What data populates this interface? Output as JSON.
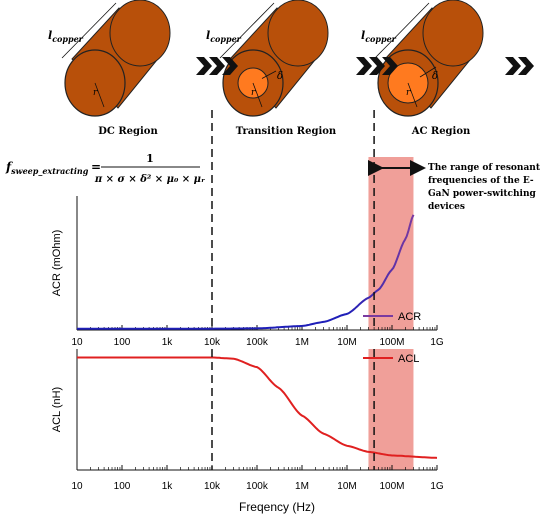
{
  "colors": {
    "copper": "#b8500a",
    "copper_dark": "#7a3306",
    "core_orange": "#ff7a1f",
    "band": "#ef9a93",
    "acr_blue": "#1f1fb8",
    "acr_purple": "#7a3aa0",
    "acl_red": "#e02020",
    "arrow_black": "#111111"
  },
  "regions": [
    {
      "label": "DC Region",
      "length_label": "l",
      "length_sub": "copper",
      "radius_label": "r",
      "delta_label": ""
    },
    {
      "label": "Transition Region",
      "length_label": "l",
      "length_sub": "copper",
      "radius_label": "r",
      "delta_label": "δ"
    },
    {
      "label": "AC Region",
      "length_label": "l",
      "length_sub": "copper",
      "radius_label": "r",
      "delta_label": "δ"
    }
  ],
  "formula": {
    "lhs_main": "f",
    "lhs_sub": "sweep_extracting",
    "numerator": "1",
    "denominator": "π × σ × δ² × μ₀ × μᵣ"
  },
  "annotation": {
    "lines": [
      "The range of resonant",
      "frequencies of the E-",
      "GaN power-switching",
      "devices"
    ]
  },
  "chart_data": [
    {
      "type": "line",
      "ylabel": "ACR (mOhm)",
      "xlabel": "",
      "xscale": "log",
      "xlim": [
        10,
        1000000000
      ],
      "ylim": [
        0,
        1
      ],
      "x_tick_labels": [
        "10",
        "100",
        "1k",
        "10k",
        "100k",
        "1M",
        "10M",
        "100M",
        "1G"
      ],
      "series": [
        {
          "name": "ACR",
          "x": [
            10,
            1000,
            10000,
            100000,
            1000000,
            3000000,
            10000000,
            30000000,
            50000000,
            100000000,
            200000000,
            300000000
          ],
          "y": [
            0.01,
            0.01,
            0.01,
            0.012,
            0.03,
            0.06,
            0.12,
            0.24,
            0.3,
            0.45,
            0.68,
            0.86
          ]
        }
      ],
      "legend": "right",
      "shaded_x_range": [
        30000000,
        300000000
      ],
      "vlines_x": [
        10000,
        40000000
      ]
    },
    {
      "type": "line",
      "ylabel": "ACL (nH)",
      "xlabel": "Freqency (Hz)",
      "xscale": "log",
      "xlim": [
        10,
        1000000000
      ],
      "ylim": [
        0,
        1
      ],
      "x_tick_labels": [
        "10",
        "100",
        "1k",
        "10k",
        "100k",
        "1M",
        "10M",
        "100M",
        "1G"
      ],
      "series": [
        {
          "name": "ACL",
          "x": [
            10,
            1000,
            10000,
            30000,
            100000,
            300000,
            1000000,
            3000000,
            10000000,
            30000000,
            100000000,
            1000000000
          ],
          "y": [
            0.93,
            0.93,
            0.93,
            0.92,
            0.85,
            0.68,
            0.45,
            0.3,
            0.2,
            0.15,
            0.12,
            0.1
          ]
        }
      ],
      "legend": "top-right",
      "shaded_x_range": [
        30000000,
        300000000
      ],
      "vlines_x": [
        10000,
        40000000
      ]
    }
  ]
}
